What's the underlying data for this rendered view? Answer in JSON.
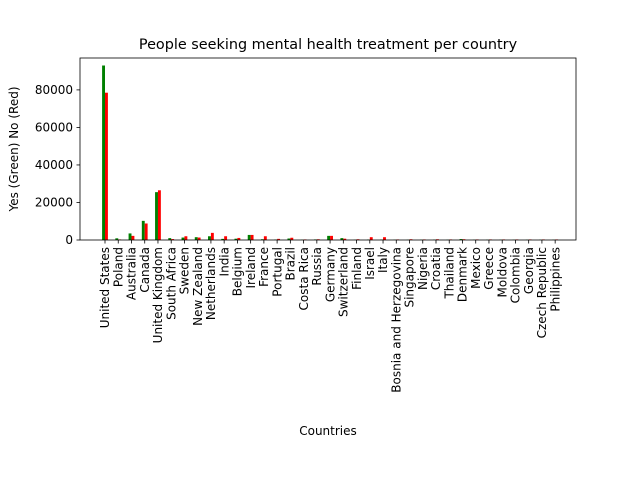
{
  "chart_data": {
    "type": "bar",
    "title": "People seeking mental health treatment per country",
    "xlabel": "Countries",
    "ylabel": "Yes (Green) No (Red)",
    "ylim": [
      0,
      97000
    ],
    "yticks": [
      0,
      20000,
      40000,
      60000,
      80000
    ],
    "grid": false,
    "categories": [
      "United States",
      "Poland",
      "Australia",
      "Canada",
      "United Kingdom",
      "South Africa",
      "Sweden",
      "New Zealand",
      "Netherlands",
      "India",
      "Belgium",
      "Ireland",
      "France",
      "Portugal",
      "Brazil",
      "Costa Rica",
      "Russia",
      "Germany",
      "Switzerland",
      "Finland",
      "Israel",
      "Italy",
      "Bosnia and Herzegovina",
      "Singapore",
      "Nigeria",
      "Croatia",
      "Thailand",
      "Denmark",
      "Mexico",
      "Greece",
      "Moldova",
      "Colombia",
      "Georgia",
      "Czech Republic",
      "Philippines"
    ],
    "series": [
      {
        "name": "Yes",
        "color": "#008000",
        "values": [
          93000,
          900,
          3500,
          10200,
          25500,
          1000,
          1300,
          1500,
          2000,
          600,
          700,
          2700,
          400,
          250,
          800,
          150,
          300,
          2200,
          1000,
          150,
          250,
          250,
          150,
          150,
          150,
          200,
          150,
          500,
          150,
          150,
          150,
          150,
          150,
          150,
          150
        ]
      },
      {
        "name": "No",
        "color": "#ff0000",
        "values": [
          78500,
          300,
          2200,
          8800,
          26500,
          500,
          2000,
          1300,
          3800,
          2000,
          1100,
          2700,
          2000,
          600,
          1200,
          300,
          400,
          2200,
          700,
          400,
          1500,
          1500,
          300,
          400,
          300,
          400,
          300,
          400,
          300,
          300,
          300,
          300,
          300,
          300,
          300
        ]
      }
    ]
  }
}
